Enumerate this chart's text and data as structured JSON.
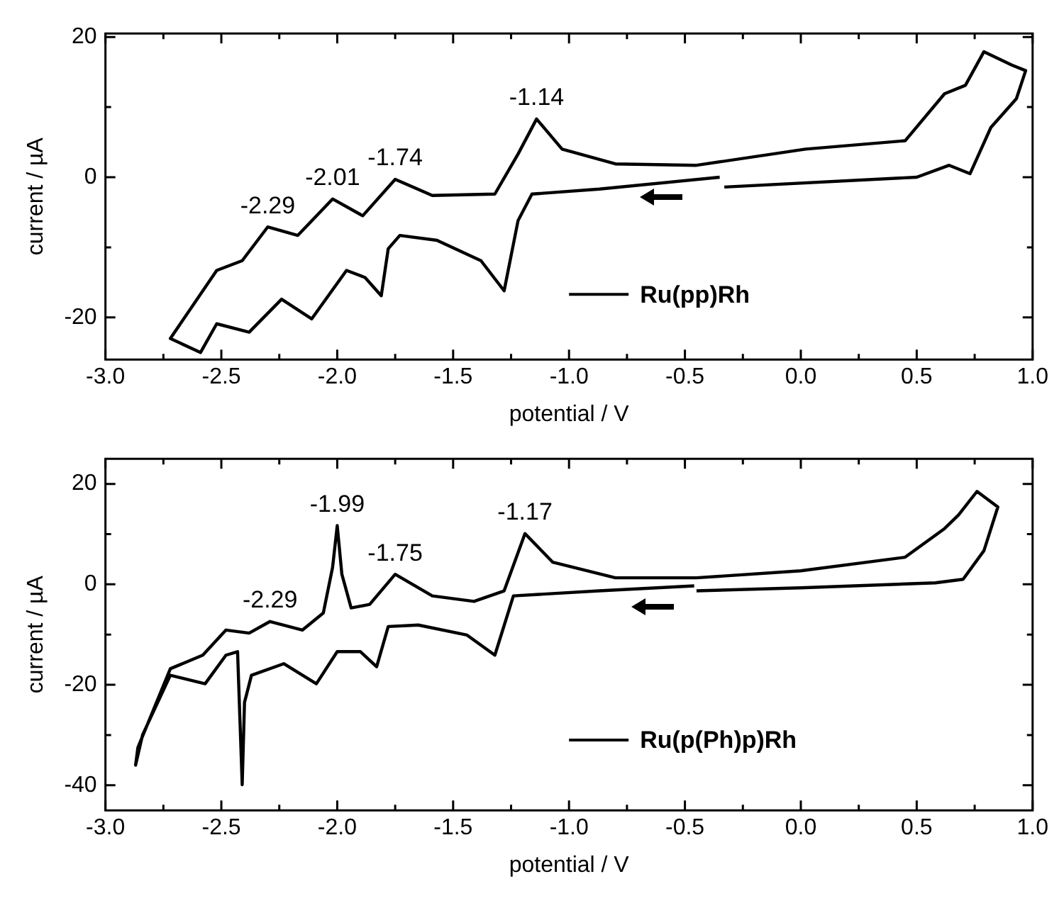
{
  "chart_data": [
    {
      "type": "line",
      "xlabel": "potential / V",
      "ylabel": "current / µA",
      "xlim": [
        -3,
        1
      ],
      "xticks": [
        {
          "value": -3,
          "label": "-3.0"
        },
        {
          "value": -2.75,
          "label": null
        },
        {
          "value": -2.5,
          "label": "-2.5"
        },
        {
          "value": -2.25,
          "label": null
        },
        {
          "value": -2,
          "label": "-2.0"
        },
        {
          "value": -1.75,
          "label": null
        },
        {
          "value": -1.5,
          "label": "-1.5"
        },
        {
          "value": -1.25,
          "label": null
        },
        {
          "value": -1,
          "label": "-1.0"
        },
        {
          "value": -0.75,
          "label": null
        },
        {
          "value": -0.5,
          "label": "-0.5"
        },
        {
          "value": -0.25,
          "label": null
        },
        {
          "value": 0,
          "label": "0.0"
        },
        {
          "value": 0.25,
          "label": null
        },
        {
          "value": 0.5,
          "label": "0.5"
        },
        {
          "value": 0.75,
          "label": null
        },
        {
          "value": 1,
          "label": "1.0"
        }
      ],
      "ylim": [
        -26,
        20.5
      ],
      "yticks": [
        20,
        {
          "value": 10,
          "label": null
        },
        0,
        {
          "value": -10,
          "label": null
        },
        -20
      ],
      "grid": false,
      "legend": "bottom right",
      "marker": "none",
      "line_style": "solid",
      "series": [
        {
          "name": "Ru(pp)Rh",
          "color": "#000000",
          "x": [
            -0.35,
            -0.87,
            -1.16,
            -1.22,
            -1.28,
            -1.38,
            -1.57,
            -1.73,
            -1.78,
            -1.81,
            -1.88,
            -1.96,
            -2.11,
            -2.24,
            -2.38,
            -2.52,
            -2.59,
            -2.72,
            -2.52,
            -2.41,
            -2.3,
            -2.17,
            -2.02,
            -1.89,
            -1.75,
            -1.59,
            -1.32,
            -1.22,
            -1.14,
            -1.03,
            -0.8,
            -0.45,
            0.02,
            0.45,
            0.62,
            0.71,
            0.79,
            0.91,
            0.97,
            0.93,
            0.82,
            0.73,
            0.64,
            0.5,
            -0.33
          ],
          "values": [
            0,
            -1.7,
            -2.4,
            -6.2,
            -16.2,
            -11.9,
            -9,
            -8.3,
            -10.2,
            -16.9,
            -14.3,
            -13.3,
            -20.2,
            -17.4,
            -22.1,
            -20.9,
            -25,
            -23,
            -13.3,
            -11.9,
            -7.1,
            -8.3,
            -3.1,
            -5.5,
            -0.3,
            -2.6,
            -2.4,
            3.3,
            8.3,
            4,
            1.9,
            1.7,
            4,
            5.2,
            11.9,
            13.1,
            17.9,
            16,
            15.2,
            11.2,
            7.1,
            0.5,
            1.7,
            0,
            -1.4
          ]
        }
      ],
      "annotations": [
        {
          "text": "-1.14",
          "x": -1.14,
          "y": 8.3
        },
        {
          "text": "-1.74",
          "x": -1.75,
          "y": -0.3
        },
        {
          "text": "-2.01",
          "x": -2.02,
          "y": -3.1
        },
        {
          "text": "-2.29",
          "x": -2.3,
          "y": -7.1
        }
      ]
    },
    {
      "type": "line",
      "xlabel": "potential / V",
      "ylabel": "current / µA",
      "xlim": [
        -3,
        1
      ],
      "xticks": [
        {
          "value": -3,
          "label": "-3.0"
        },
        {
          "value": -2.75,
          "label": null
        },
        {
          "value": -2.5,
          "label": "-2.5"
        },
        {
          "value": -2.25,
          "label": null
        },
        {
          "value": -2,
          "label": "-2.0"
        },
        {
          "value": -1.75,
          "label": null
        },
        {
          "value": -1.5,
          "label": "-1.5"
        },
        {
          "value": -1.25,
          "label": null
        },
        {
          "value": -1,
          "label": "-1.0"
        },
        {
          "value": -0.75,
          "label": null
        },
        {
          "value": -0.5,
          "label": "-0.5"
        },
        {
          "value": -0.25,
          "label": null
        },
        {
          "value": 0,
          "label": "0.0"
        },
        {
          "value": 0.25,
          "label": null
        },
        {
          "value": 0.5,
          "label": "0.5"
        },
        {
          "value": 0.75,
          "label": null
        },
        {
          "value": 1,
          "label": "1.0"
        }
      ],
      "ylim": [
        -45,
        25
      ],
      "yticks": [
        20,
        {
          "value": 10,
          "label": null
        },
        0,
        {
          "value": -10,
          "label": null
        },
        -20,
        {
          "value": -30,
          "label": null
        },
        -40
      ],
      "grid": false,
      "legend": "bottom right",
      "marker": "none",
      "line_style": "solid",
      "series": [
        {
          "name": "Ru(p(Ph)p)Rh",
          "color": "#000000",
          "x": [
            -0.46,
            -0.87,
            -1.24,
            -1.32,
            -1.44,
            -1.65,
            -1.78,
            -1.83,
            -1.9,
            -2,
            -2.09,
            -2.23,
            -2.37,
            -2.4,
            -2.41,
            -2.43,
            -2.48,
            -2.57,
            -2.72,
            -2.84,
            -2.87,
            -2.86,
            -2.72,
            -2.58,
            -2.48,
            -2.38,
            -2.29,
            -2.15,
            -2.06,
            -2.02,
            -2,
            -1.98,
            -1.94,
            -1.86,
            -1.75,
            -1.59,
            -1.41,
            -1.28,
            -1.19,
            -1.07,
            -0.8,
            -0.45,
            0,
            0.45,
            0.62,
            0.68,
            0.76,
            0.85,
            0.79,
            0.7,
            0.58,
            0,
            -0.45
          ],
          "values": [
            -0.3,
            -1.3,
            -2.3,
            -14.1,
            -10.1,
            -8.1,
            -8.4,
            -16.4,
            -13.4,
            -13.4,
            -19.8,
            -15.8,
            -18.1,
            -23.5,
            -39.9,
            -13.4,
            -14.1,
            -19.8,
            -18.1,
            -30,
            -36,
            -32.5,
            -16.8,
            -14.1,
            -9.1,
            -9.7,
            -7.4,
            -9.1,
            -5.7,
            3.4,
            11.7,
            2,
            -4.7,
            -4,
            2,
            -2.3,
            -3.4,
            -1.3,
            10.1,
            4.4,
            1.3,
            1.3,
            2.7,
            5.4,
            11.1,
            13.8,
            18.5,
            15.4,
            6.7,
            1,
            0.3,
            -0.7,
            -1.3
          ]
        }
      ],
      "annotations": [
        {
          "text": "-1.17",
          "x": -1.19,
          "y": 10.1
        },
        {
          "text": "-1.75",
          "x": -1.75,
          "y": 2
        },
        {
          "text": "-1.99",
          "x": -2,
          "y": 11.7
        },
        {
          "text": "-2.29",
          "x": -2.29,
          "y": -7.4
        }
      ]
    }
  ]
}
